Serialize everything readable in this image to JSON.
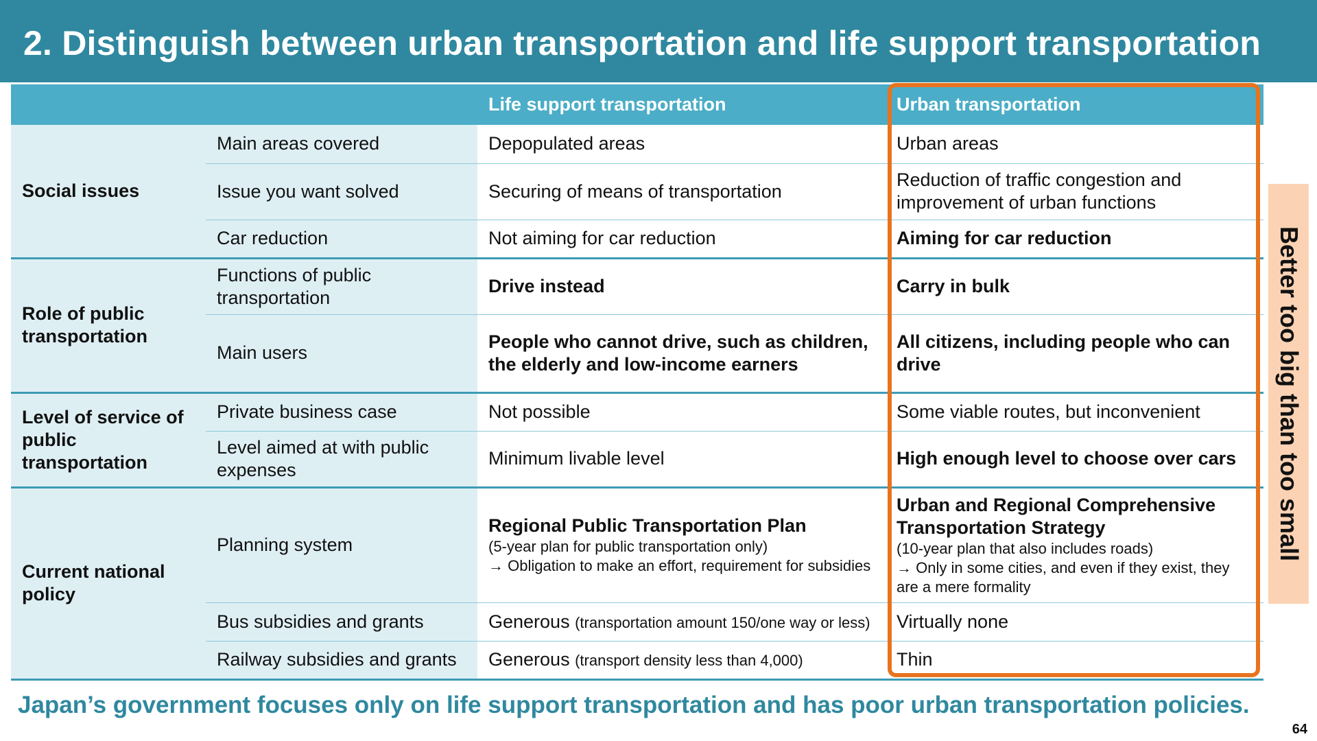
{
  "header": {
    "title": "2. Distinguish between urban transportation and life support transportation"
  },
  "table": {
    "col_life": "Life support transportation",
    "col_urban": "Urban transportation",
    "social": {
      "label": "Social issues",
      "r1": {
        "sub": "Main areas covered",
        "life": "Depopulated areas",
        "urban": "Urban areas"
      },
      "r2": {
        "sub": "Issue you want solved",
        "life": "Securing of means of transportation",
        "urban": "Reduction of traffic congestion and improvement of urban functions"
      },
      "r3": {
        "sub": "Car reduction",
        "life": "Not aiming for car reduction",
        "urban": "Aiming for car reduction"
      }
    },
    "role": {
      "label": "Role of public transportation",
      "r1": {
        "sub": "Functions of public transportation",
        "life": "Drive instead",
        "urban": "Carry in bulk"
      },
      "r2": {
        "sub": "Main users",
        "life": "People who cannot drive, such as children, the elderly and low-income earners",
        "urban": "All citizens, including people who can drive"
      }
    },
    "service": {
      "label": "Level of service of public transportation",
      "r1": {
        "sub": "Private business case",
        "life": "Not possible",
        "urban": "Some viable routes, but inconvenient"
      },
      "r2": {
        "sub": "Level aimed at with public expenses",
        "life": "Minimum livable level",
        "urban": "High enough level to choose over cars"
      }
    },
    "policy": {
      "label": "Current national policy",
      "r1": {
        "sub": "Planning system",
        "life_title": "Regional Public Transportation Plan",
        "life_detail1": "(5-year plan for public transportation only)",
        "life_detail2": "→ Obligation to make an effort, requirement for subsidies",
        "urban_title": "Urban and Regional Comprehensive Transportation Strategy",
        "urban_detail1": "(10-year plan that also includes roads)",
        "urban_detail2": "→ Only in some cities, and even if they exist, they are a mere formality"
      },
      "r2": {
        "sub": "Bus subsidies and grants",
        "life": "Generous",
        "life_note": "(transportation amount 150/one way or less)",
        "urban": "Virtually none"
      },
      "r3": {
        "sub": "Railway subsidies and grants",
        "life": "Generous",
        "life_note": "(transport density less than 4,000)",
        "urban": "Thin"
      }
    }
  },
  "side_note": "Better too big than too small",
  "footer": "Japan’s government focuses only on life support transportation and has poor urban transportation policies.",
  "page_number": "64",
  "colors": {
    "header": "#2f889f",
    "table_header": "#4badc7",
    "highlight": "#e8731e",
    "side_note_bg": "#fbd3b4"
  }
}
